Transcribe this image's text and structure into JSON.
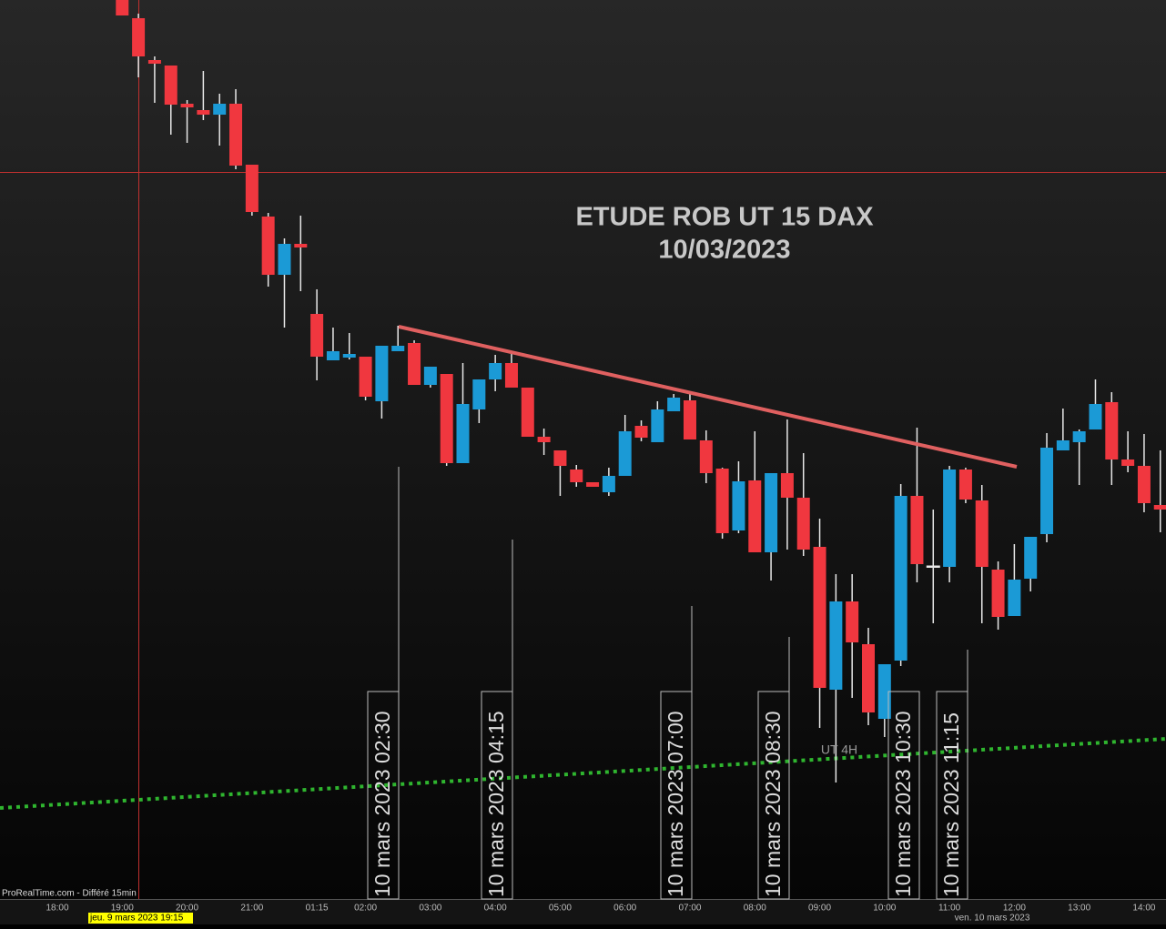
{
  "chart_data": {
    "type": "candlestick",
    "title": "ETUDE ROB UT 15 DAX",
    "subtitle": "10/03/2023",
    "up_color": "#1b9ad6",
    "down_color": "#f0373f",
    "ylim": [
      0,
      988
    ],
    "categories": [
      "18:00",
      null,
      null,
      null,
      "19:00",
      null,
      null,
      null,
      "20:00",
      null,
      null,
      null,
      "21:00",
      null,
      null,
      null,
      "01:15",
      null,
      null,
      "02:00",
      null,
      null,
      null,
      "03:00",
      null,
      null,
      null,
      "04:00",
      null,
      null,
      null,
      "05:00",
      null,
      null,
      null,
      "06:00",
      null,
      null,
      null,
      "07:00",
      null,
      null,
      null,
      "08:00",
      null,
      null,
      null,
      "09:00",
      null,
      null,
      null,
      "10:00",
      null,
      null,
      null,
      "11:00",
      null,
      null,
      null,
      "12:00",
      null,
      null,
      null,
      "13:00",
      null,
      null,
      null,
      "14:00",
      null
    ],
    "open": [
      null,
      null,
      null,
      null,
      988,
      968,
      922,
      916,
      874,
      867,
      862,
      874,
      807,
      750,
      686,
      720,
      643,
      592,
      595,
      596,
      547,
      602,
      611,
      565,
      577,
      479,
      538,
      571,
      589,
      562,
      508,
      493,
      472,
      458,
      447,
      465,
      520,
      502,
      536,
      548,
      504,
      473,
      405,
      460,
      381,
      468,
      441,
      387,
      230,
      327,
      280,
      198,
      262,
      443,
      366,
      365,
      472,
      438,
      362,
      311,
      352,
      401,
      493,
      502,
      516,
      546,
      483,
      476,
      433
    ],
    "high": [
      null,
      null,
      null,
      null,
      988,
      973,
      926,
      916,
      878,
      910,
      885,
      890,
      807,
      754,
      726,
      751,
      670,
      628,
      622,
      596,
      608,
      630,
      614,
      585,
      577,
      589,
      571,
      598,
      599,
      562,
      517,
      493,
      477,
      458,
      474,
      532,
      526,
      547,
      555,
      556,
      515,
      474,
      481,
      514,
      468,
      527,
      490,
      418,
      357,
      357,
      298,
      258,
      456,
      518,
      428,
      476,
      474,
      455,
      371,
      390,
      398,
      512,
      539,
      516,
      571,
      557,
      514,
      511,
      493
    ],
    "low": [
      null,
      null,
      null,
      null,
      971,
      903,
      875,
      840,
      831,
      856,
      828,
      802,
      751,
      673,
      628,
      668,
      570,
      592,
      593,
      548,
      528,
      602,
      565,
      562,
      476,
      479,
      523,
      558,
      562,
      508,
      488,
      443,
      453,
      453,
      443,
      465,
      503,
      502,
      536,
      505,
      457,
      396,
      402,
      381,
      350,
      384,
      377,
      188,
      128,
      221,
      191,
      178,
      256,
      348,
      303,
      348,
      435,
      303,
      296,
      311,
      338,
      392,
      493,
      455,
      516,
      455,
      469,
      425,
      403
    ],
    "close": [
      null,
      null,
      null,
      null,
      971,
      926,
      918,
      873,
      870,
      862,
      874,
      806,
      755,
      686,
      720,
      716,
      596,
      602,
      599,
      552,
      608,
      608,
      565,
      585,
      479,
      544,
      571,
      589,
      562,
      508,
      502,
      476,
      458,
      453,
      465,
      514,
      507,
      538,
      551,
      505,
      468,
      402,
      459,
      381,
      468,
      441,
      384,
      232,
      327,
      282,
      205,
      258,
      443,
      368,
      366,
      472,
      439,
      365,
      310,
      351,
      398,
      496,
      504,
      514,
      544,
      483,
      476,
      435,
      428
    ],
    "time_markers": [
      "10 mars 2023 02:30",
      "10 mars 2023 04:15",
      "10 mars 2023 07:00",
      "10 mars 2023 08:30",
      "10 mars 2023 10:30",
      "10 mars 2023 11:15"
    ],
    "line_label": "UT 4H",
    "source": "ProRealTime.com - Différé 15min",
    "cursor_date": "jeu. 9 mars 2023 19:15",
    "date_label": "ven. 10 mars 2023"
  }
}
